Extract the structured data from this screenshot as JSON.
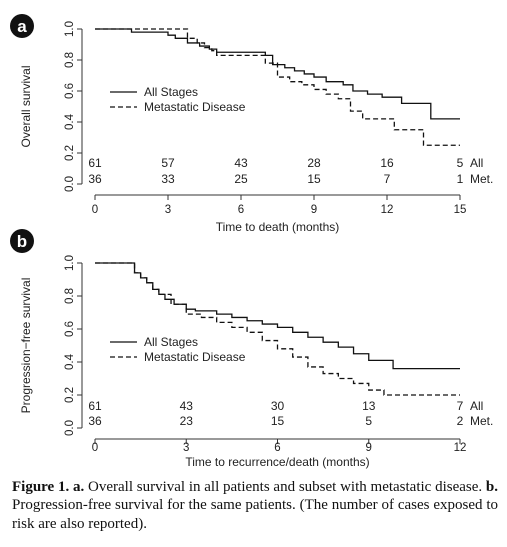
{
  "chart_data": [
    {
      "panel": "a",
      "type": "line",
      "xlabel": "Time to death (months)",
      "ylabel": "Overall survival",
      "xlim": [
        0,
        15
      ],
      "ylim": [
        0,
        1
      ],
      "xticks": [
        0,
        3,
        6,
        9,
        12,
        15
      ],
      "yticks": [
        0.0,
        0.2,
        0.4,
        0.6,
        0.8,
        1.0
      ],
      "legend_position": "center-left",
      "series": [
        {
          "name": "All Stages",
          "style": "solid",
          "x": [
            0,
            1.5,
            3,
            3.3,
            3.8,
            4.3,
            4.7,
            5.0,
            7.0,
            7.3,
            7.8,
            8.2,
            8.6,
            9.0,
            9.5,
            10.2,
            10.6,
            11.2,
            11.8,
            12.6,
            13.8,
            15
          ],
          "y": [
            1.0,
            0.98,
            0.96,
            0.94,
            0.91,
            0.89,
            0.87,
            0.85,
            0.83,
            0.77,
            0.75,
            0.73,
            0.71,
            0.69,
            0.66,
            0.64,
            0.6,
            0.58,
            0.56,
            0.52,
            0.42,
            0.42
          ]
        },
        {
          "name": "Metastatic Disease",
          "style": "dashed",
          "x": [
            0,
            3.8,
            4.2,
            4.5,
            4.8,
            5.0,
            7.0,
            7.5,
            8.0,
            8.5,
            9.0,
            9.5,
            10.0,
            10.5,
            11.0,
            11.5,
            12.3,
            13.5,
            14.2,
            15
          ],
          "y": [
            1.0,
            0.94,
            0.91,
            0.88,
            0.86,
            0.83,
            0.78,
            0.69,
            0.66,
            0.64,
            0.61,
            0.58,
            0.55,
            0.47,
            0.42,
            0.42,
            0.35,
            0.25,
            0.25,
            0.25
          ]
        }
      ],
      "risk_table": {
        "times": [
          0,
          3,
          6,
          9,
          12,
          15
        ],
        "rows": [
          {
            "label": "All",
            "values": [
              "61",
              "57",
              "43",
              "28",
              "16",
              "5"
            ]
          },
          {
            "label": "Met.",
            "values": [
              "36",
              "33",
              "25",
              "15",
              "7",
              "1"
            ]
          }
        ]
      }
    },
    {
      "panel": "b",
      "type": "line",
      "xlabel": "Time to recurrence/death (months)",
      "ylabel": "Progression−free survival",
      "xlim": [
        0,
        12
      ],
      "ylim": [
        0,
        1
      ],
      "xticks": [
        0,
        3,
        6,
        9,
        12
      ],
      "yticks": [
        0.0,
        0.2,
        0.4,
        0.6,
        0.8,
        1.0
      ],
      "legend_position": "center-left",
      "series": [
        {
          "name": "All Stages",
          "style": "solid",
          "x": [
            0,
            1.3,
            1.5,
            1.7,
            1.9,
            2.1,
            2.3,
            2.6,
            3.0,
            3.3,
            4.0,
            4.5,
            5.0,
            5.5,
            6.0,
            6.5,
            7.0,
            7.5,
            8.0,
            8.5,
            9.0,
            9.8,
            12
          ],
          "y": [
            1.0,
            0.94,
            0.91,
            0.88,
            0.84,
            0.81,
            0.78,
            0.75,
            0.72,
            0.71,
            0.69,
            0.67,
            0.65,
            0.63,
            0.61,
            0.58,
            0.55,
            0.52,
            0.49,
            0.45,
            0.41,
            0.36,
            0.36
          ]
        },
        {
          "name": "Metastatic Disease",
          "style": "dashed",
          "x": [
            0,
            1.3,
            1.5,
            1.7,
            1.9,
            2.1,
            2.5,
            3.0,
            3.5,
            4.0,
            4.5,
            5.0,
            5.5,
            6.0,
            6.5,
            7.0,
            7.5,
            8.0,
            8.5,
            9.0,
            9.5,
            12
          ],
          "y": [
            1.0,
            0.94,
            0.91,
            0.88,
            0.84,
            0.81,
            0.75,
            0.69,
            0.67,
            0.64,
            0.61,
            0.58,
            0.53,
            0.48,
            0.43,
            0.37,
            0.33,
            0.3,
            0.27,
            0.23,
            0.2,
            0.2
          ]
        }
      ],
      "risk_table": {
        "times": [
          0,
          3,
          6,
          9,
          12
        ],
        "rows": [
          {
            "label": "All",
            "values": [
              "61",
              "43",
              "30",
              "13",
              "7"
            ]
          },
          {
            "label": "Met.",
            "values": [
              "36",
              "23",
              "15",
              "5",
              "2"
            ]
          }
        ]
      }
    }
  ],
  "caption": {
    "figure_label": "Figure 1.",
    "a_label": "a.",
    "a_text": "Overall survival in all patients and subset with metastatic disease.",
    "b_label": "b.",
    "b_text": "Progression-free survival for the same patients.",
    "note": "(The number of cases exposed to risk are also reported)."
  },
  "colors": {
    "line": "#111111",
    "badge": "#111111"
  }
}
